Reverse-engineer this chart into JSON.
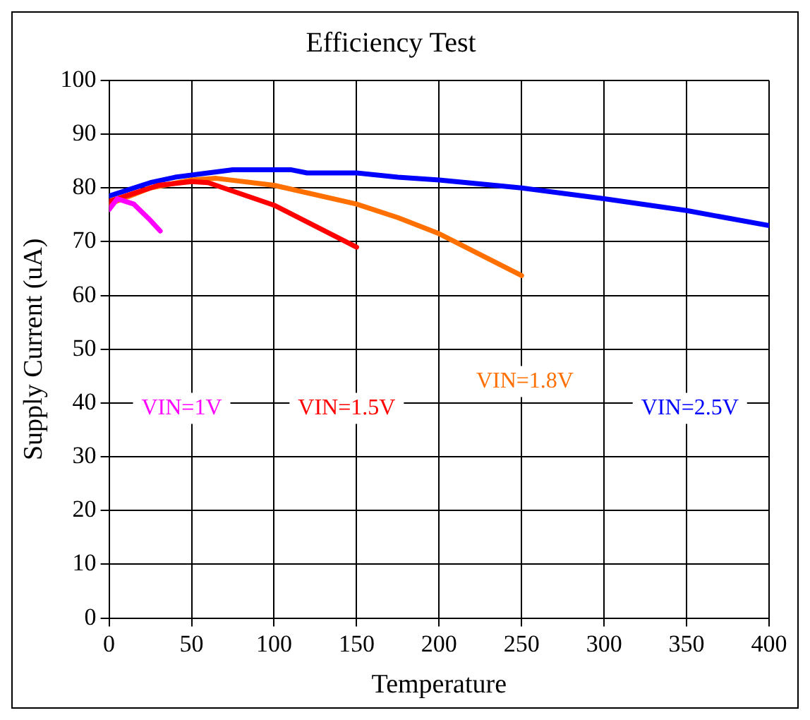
{
  "chart_data": {
    "type": "line",
    "title": "Efficiency Test",
    "xlabel": "Temperature",
    "ylabel": "Supply Current (uA)",
    "xlim": [
      0,
      400
    ],
    "xticks": [
      0,
      50,
      100,
      150,
      200,
      250,
      300,
      350,
      400
    ],
    "ylim": [
      0,
      100
    ],
    "yticks": [
      0,
      10,
      20,
      30,
      40,
      50,
      60,
      70,
      80,
      90,
      100
    ],
    "grid": true,
    "marker": "none",
    "line_style": "solid",
    "legend": false,
    "series": [
      {
        "name": "VIN=1V",
        "color": "#ff00ff",
        "x": [
          0,
          5,
          15,
          25,
          31
        ],
        "values": [
          76,
          78,
          77,
          74,
          72
        ]
      },
      {
        "name": "VIN=1.5V",
        "color": "#ff0000",
        "x": [
          0,
          15,
          30,
          50,
          60,
          100,
          150
        ],
        "values": [
          77.5,
          79,
          80.5,
          81.2,
          81,
          76.8,
          69
        ]
      },
      {
        "name": "VIN=1.8V",
        "color": "#ff7000",
        "x": [
          0,
          25,
          50,
          65,
          100,
          150,
          175,
          200,
          250
        ],
        "values": [
          77,
          80,
          81.5,
          81.8,
          80.5,
          77,
          74.5,
          71.5,
          63.7
        ]
      },
      {
        "name": "VIN=2.5V",
        "color": "#0000ff",
        "x": [
          0,
          10,
          25,
          40,
          60,
          75,
          110,
          120,
          150,
          175,
          200,
          250,
          300,
          350,
          400
        ],
        "values": [
          78.5,
          79.5,
          81,
          82,
          82.8,
          83.4,
          83.4,
          82.8,
          82.8,
          82,
          81.5,
          80,
          78,
          75.8,
          73
        ]
      }
    ]
  }
}
